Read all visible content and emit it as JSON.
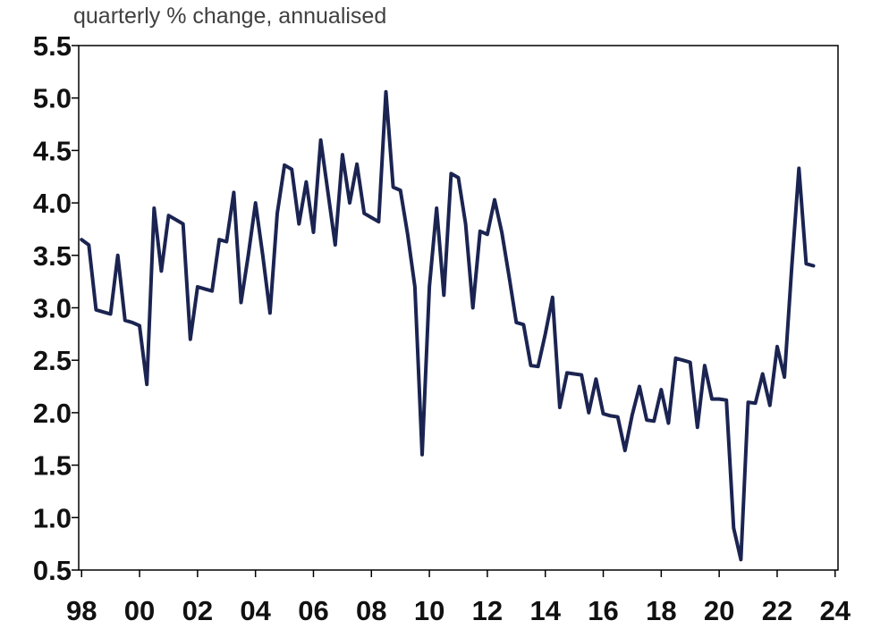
{
  "chart_data": {
    "type": "line",
    "subtitle": "quarterly % change, annualised",
    "title": "",
    "xlabel": "",
    "ylabel": "",
    "xlim": [
      1997.9,
      2024.1
    ],
    "ylim": [
      0.5,
      5.5
    ],
    "x_ticks": [
      1998,
      2000,
      2002,
      2004,
      2006,
      2008,
      2010,
      2012,
      2014,
      2016,
      2018,
      2020,
      2022,
      2024
    ],
    "x_tick_labels": [
      "98",
      "00",
      "02",
      "04",
      "06",
      "08",
      "10",
      "12",
      "14",
      "16",
      "18",
      "20",
      "22",
      "24"
    ],
    "y_ticks": [
      0.5,
      1.0,
      1.5,
      2.0,
      2.5,
      3.0,
      3.5,
      4.0,
      4.5,
      5.0,
      5.5
    ],
    "y_tick_labels": [
      "0.5",
      "1.0",
      "1.5",
      "2.0",
      "2.5",
      "3.0",
      "3.5",
      "4.0",
      "4.5",
      "5.0",
      "5.5"
    ],
    "grid": false,
    "legend": "none",
    "line_color": "#1b2451",
    "series": [
      {
        "x": [
          "1998-Q1",
          "1998-Q2",
          "1998-Q3",
          "1998-Q4",
          "1999-Q1",
          "1999-Q2",
          "1999-Q3",
          "1999-Q4",
          "2000-Q1",
          "2000-Q2",
          "2000-Q3",
          "2000-Q4",
          "2001-Q1",
          "2001-Q2",
          "2001-Q3",
          "2001-Q4",
          "2002-Q1",
          "2002-Q2",
          "2002-Q3",
          "2002-Q4",
          "2003-Q1",
          "2003-Q2",
          "2003-Q3",
          "2003-Q4",
          "2004-Q1",
          "2004-Q2",
          "2004-Q3",
          "2004-Q4",
          "2005-Q1",
          "2005-Q2",
          "2005-Q3",
          "2005-Q4",
          "2006-Q1",
          "2006-Q2",
          "2006-Q3",
          "2006-Q4",
          "2007-Q1",
          "2007-Q2",
          "2007-Q3",
          "2007-Q4",
          "2008-Q1",
          "2008-Q2",
          "2008-Q3",
          "2008-Q4",
          "2009-Q1",
          "2009-Q2",
          "2009-Q3",
          "2009-Q4",
          "2010-Q1",
          "2010-Q2",
          "2010-Q3",
          "2010-Q4",
          "2011-Q1",
          "2011-Q2",
          "2011-Q3",
          "2011-Q4",
          "2012-Q1",
          "2012-Q2",
          "2012-Q3",
          "2012-Q4",
          "2013-Q1",
          "2013-Q2",
          "2013-Q3",
          "2013-Q4",
          "2014-Q1",
          "2014-Q2",
          "2014-Q3",
          "2014-Q4",
          "2015-Q1",
          "2015-Q2",
          "2015-Q3",
          "2015-Q4",
          "2016-Q1",
          "2016-Q2",
          "2016-Q3",
          "2016-Q4",
          "2017-Q1",
          "2017-Q2",
          "2017-Q3",
          "2017-Q4",
          "2018-Q1",
          "2018-Q2",
          "2018-Q3",
          "2018-Q4",
          "2019-Q1",
          "2019-Q2",
          "2019-Q3",
          "2019-Q4",
          "2020-Q1",
          "2020-Q2",
          "2020-Q3",
          "2020-Q4",
          "2021-Q1",
          "2021-Q2",
          "2021-Q3",
          "2021-Q4",
          "2022-Q1",
          "2022-Q2",
          "2022-Q3",
          "2022-Q4",
          "2023-Q1",
          "2023-Q2"
        ],
        "values": [
          3.65,
          3.6,
          2.98,
          2.96,
          2.94,
          3.5,
          2.88,
          2.86,
          2.83,
          2.27,
          3.95,
          3.35,
          3.88,
          3.84,
          3.8,
          2.7,
          3.2,
          3.18,
          3.16,
          3.65,
          3.63,
          4.1,
          3.05,
          3.5,
          4.0,
          3.5,
          2.95,
          3.9,
          4.36,
          4.32,
          3.8,
          4.2,
          3.72,
          4.6,
          4.1,
          3.6,
          4.46,
          4.0,
          4.37,
          3.9,
          3.86,
          3.82,
          5.06,
          4.15,
          4.12,
          3.7,
          3.2,
          1.6,
          3.2,
          3.95,
          3.12,
          4.28,
          4.24,
          3.8,
          3.0,
          3.73,
          3.7,
          4.03,
          3.72,
          3.3,
          2.86,
          2.84,
          2.45,
          2.44,
          2.75,
          3.1,
          2.05,
          2.38,
          2.37,
          2.36,
          2.0,
          2.32,
          1.99,
          1.97,
          1.96,
          1.64,
          1.98,
          2.25,
          1.93,
          1.92,
          2.22,
          1.9,
          2.52,
          2.5,
          2.48,
          1.86,
          2.45,
          2.13,
          2.13,
          2.12,
          0.9,
          0.6,
          2.1,
          2.09,
          2.37,
          2.07,
          2.63,
          2.34,
          3.38,
          4.33,
          3.42,
          3.4
        ]
      }
    ]
  }
}
